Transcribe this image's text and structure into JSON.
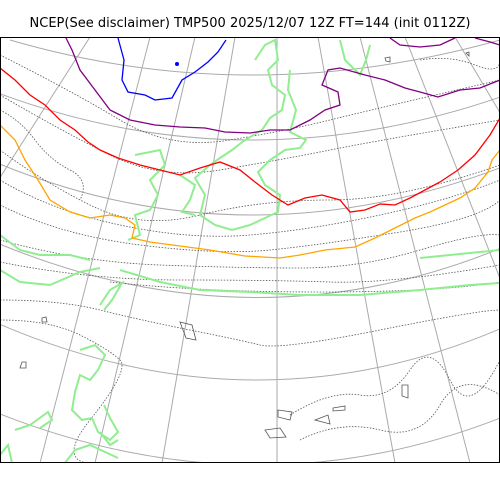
{
  "title": "NCEP(See disclaimer) TMP500 2025/12/07 12Z FT=144 (init 0112Z)",
  "colors": {
    "graticule": "#aaaaaa",
    "coastline": "#90ee90",
    "isotherm_minor": "#555555",
    "isotherm_blue": "#0000ff",
    "isotherm_purple": "#800080",
    "isotherm_red": "#ff0000",
    "isotherm_orange": "#ffa500",
    "frame": "#000000"
  },
  "layers": [
    "graticule",
    "coastline",
    "isotherms"
  ],
  "icons": [
    "map-frame",
    "coastline-shape",
    "temperature-contour",
    "graticule-line"
  ]
}
